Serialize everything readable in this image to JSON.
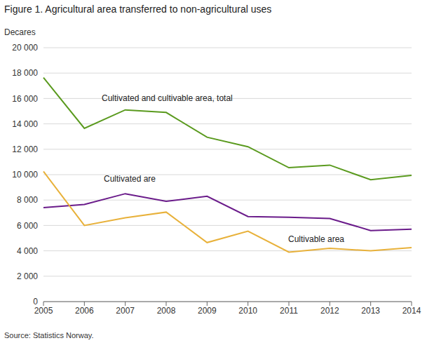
{
  "chart_data": {
    "type": "line",
    "title": "Figure 1. Agricultural area transferred to non-agricultural uses",
    "y_label": "Decares",
    "source": "Source: Statistics Norway.",
    "categories": [
      "2005",
      "2006",
      "2007",
      "2008",
      "2009",
      "2010",
      "2011",
      "2012",
      "2013",
      "2014"
    ],
    "series": [
      {
        "name": "Cultivated and cultivable area, total",
        "color": "#5a9a1e",
        "values": [
          17650,
          13650,
          15100,
          14900,
          12950,
          12200,
          10550,
          10750,
          9600,
          9950
        ]
      },
      {
        "name": "Cultivated are",
        "color": "#6a1b8a",
        "values": [
          7400,
          7650,
          8500,
          7900,
          8300,
          6700,
          6650,
          6550,
          5600,
          5700
        ]
      },
      {
        "name": "Cultivable area",
        "color": "#e8b13a",
        "values": [
          10250,
          6000,
          6600,
          7050,
          4650,
          5550,
          3900,
          4200,
          4000,
          4250
        ]
      }
    ],
    "ylim": [
      0,
      20000
    ],
    "yticks": [
      0,
      {
        "value": 2000,
        "label": "2 000"
      },
      {
        "value": 4000,
        "label": "4 000"
      },
      {
        "value": 6000,
        "label": "6 000"
      },
      {
        "value": 8000,
        "label": "8 000"
      },
      {
        "value": 10000,
        "label": "10 000"
      },
      {
        "value": 12000,
        "label": "12 000"
      },
      {
        "value": 14000,
        "label": "14 000"
      },
      {
        "value": 16000,
        "label": "16 000"
      },
      {
        "value": 18000,
        "label": "18 000"
      },
      {
        "value": 20000,
        "label": "20 000"
      }
    ],
    "grid": true
  }
}
